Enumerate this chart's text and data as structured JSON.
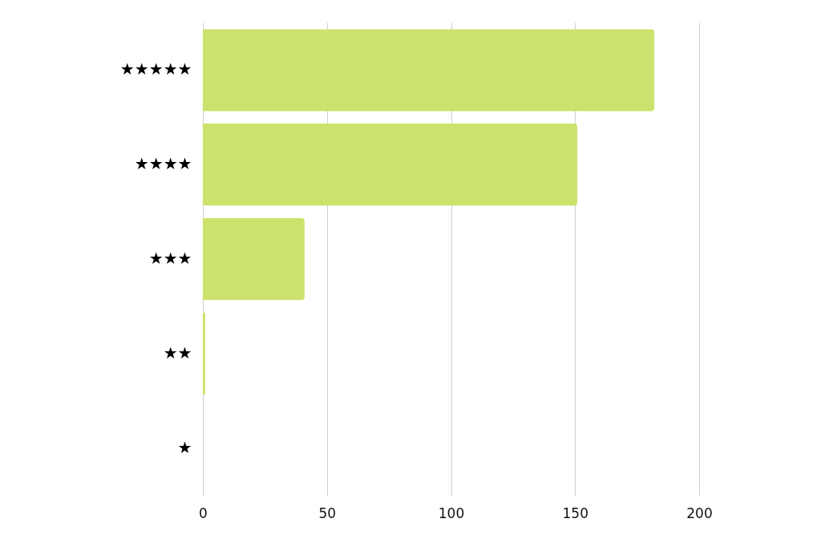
{
  "chart_data": {
    "type": "bar",
    "orientation": "horizontal",
    "categories": [
      "★★★★★",
      "★★★★",
      "★★★",
      "★★",
      "★"
    ],
    "values": [
      182,
      151,
      41,
      1,
      0
    ],
    "color": "#cbe26c",
    "xlim": [
      0,
      200
    ],
    "xticks": [
      0,
      50,
      100,
      150,
      200
    ],
    "grid": "x"
  }
}
